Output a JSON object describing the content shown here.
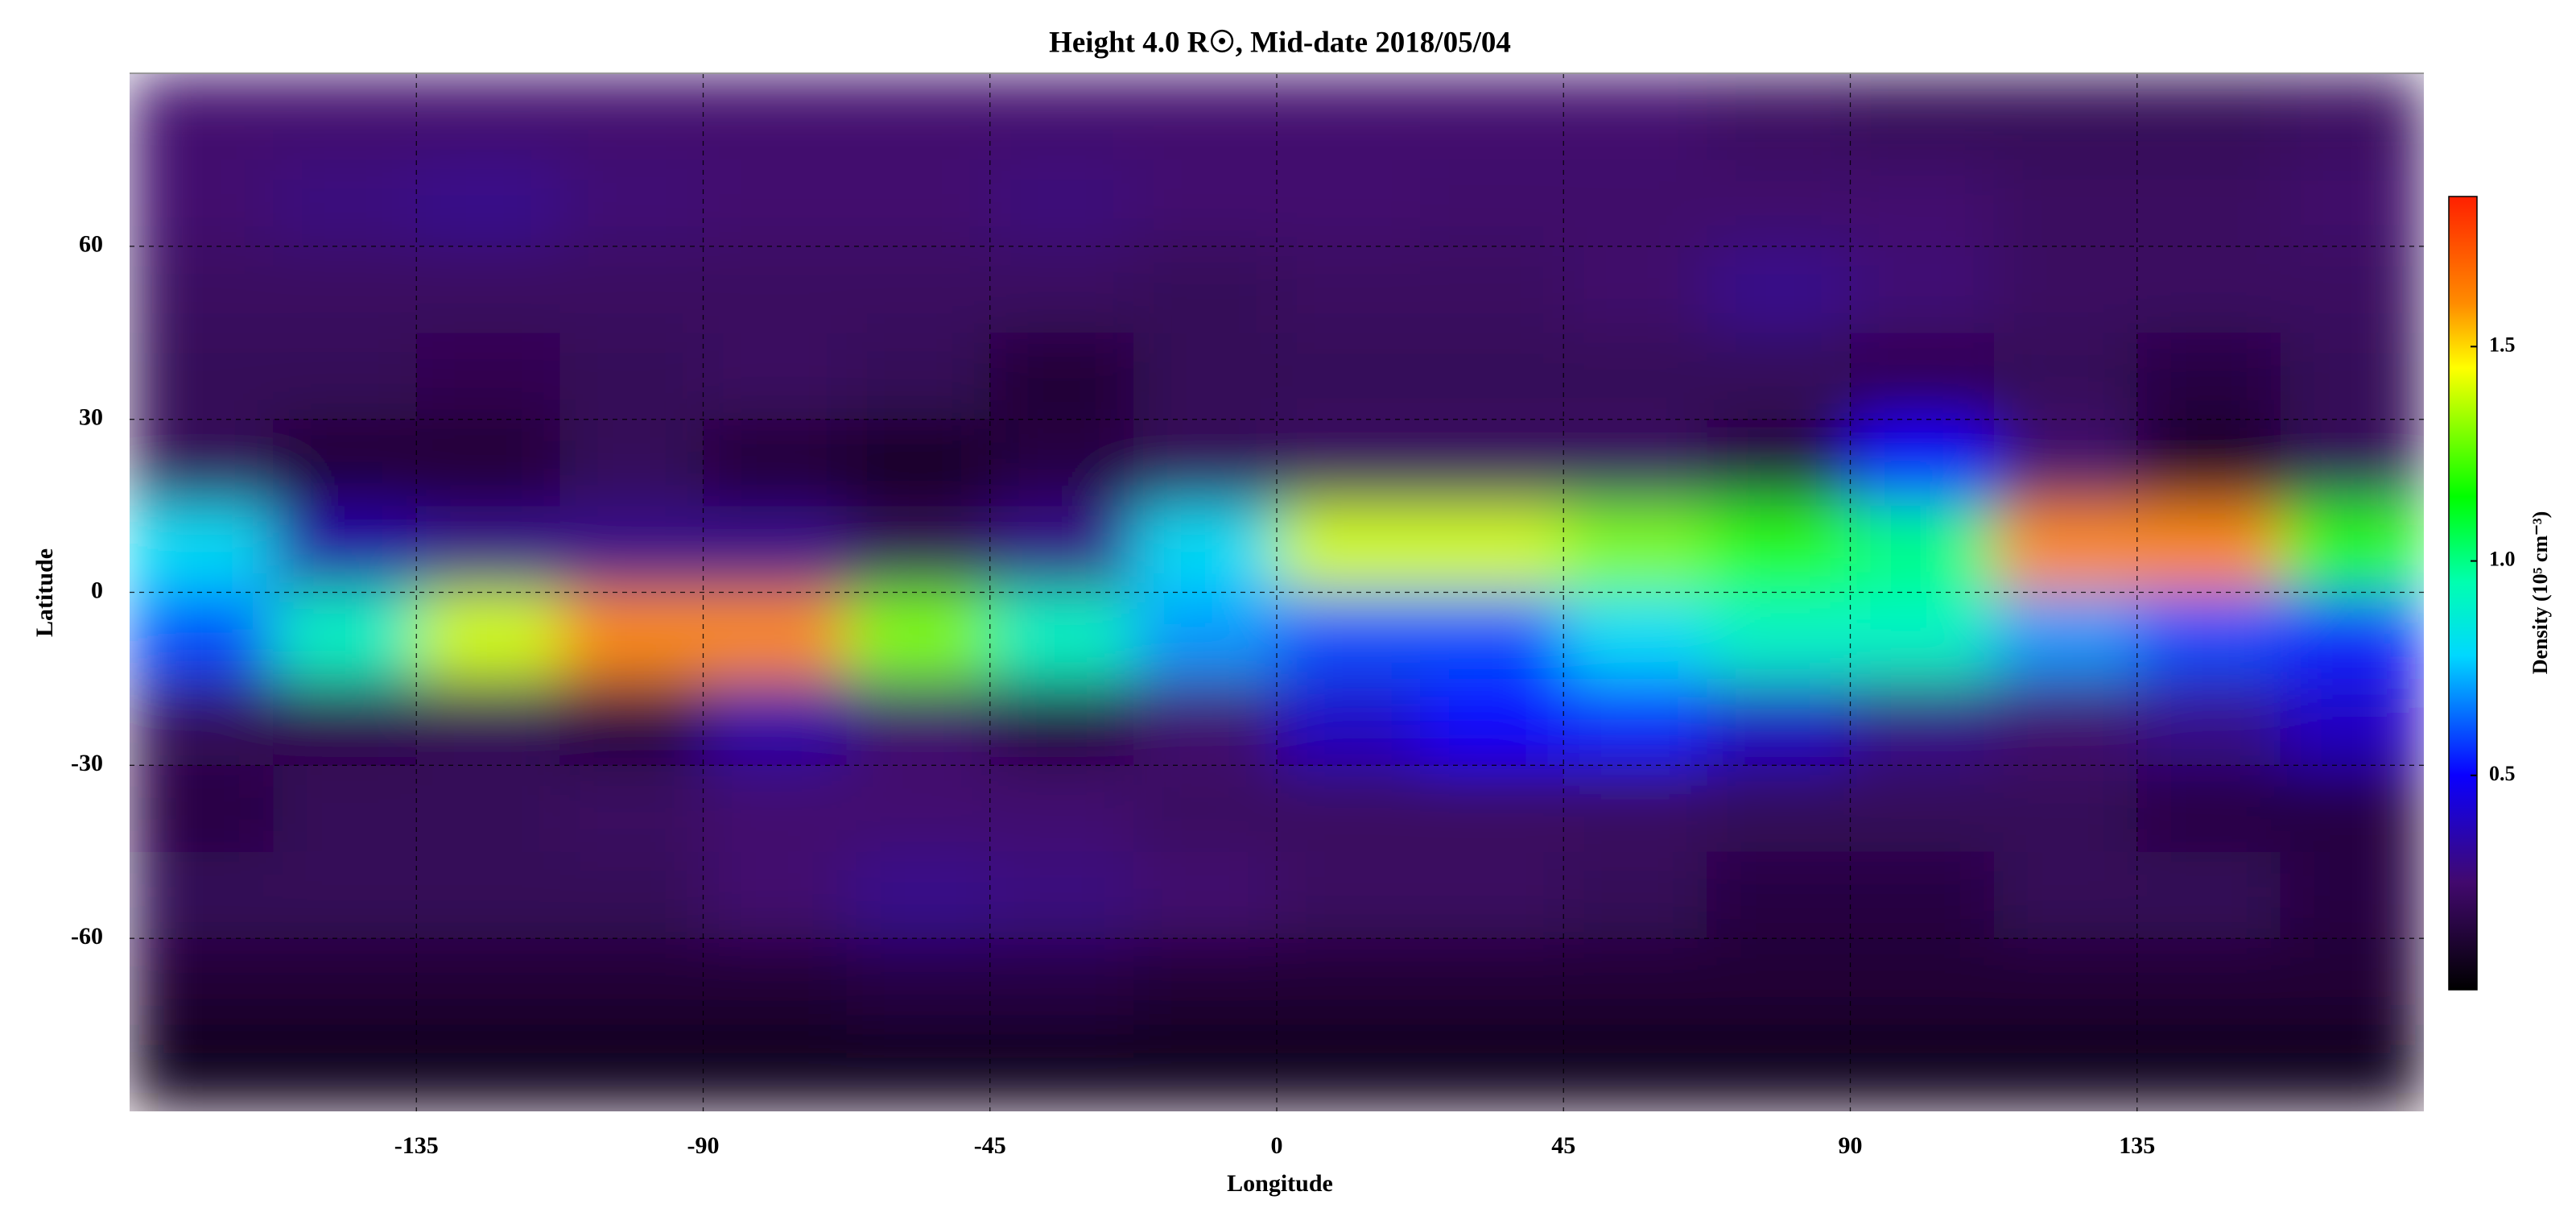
{
  "chart_data": {
    "type": "heatmap",
    "title": "Height 4.0 R☉, Mid-date 2018/05/04",
    "x_label": "Longitude",
    "y_label": "Latitude",
    "colorbar_label": "Density (10⁵ cm⁻³)",
    "x": [
      -168.75,
      -146.25,
      -123.75,
      -101.25,
      -78.75,
      -56.25,
      -33.75,
      -11.25,
      11.25,
      33.75,
      56.25,
      78.75,
      101.25,
      123.75,
      146.25,
      168.75
    ],
    "y": [
      82.5,
      67.5,
      52.5,
      37.5,
      22.5,
      7.5,
      -7.5,
      -22.5,
      -37.5,
      -52.5,
      -67.5,
      -82.5
    ],
    "values": [
      [
        0.25,
        0.25,
        0.25,
        0.25,
        0.25,
        0.25,
        0.25,
        0.25,
        0.25,
        0.25,
        0.25,
        0.22,
        0.2,
        0.2,
        0.2,
        0.22
      ],
      [
        0.25,
        0.28,
        0.3,
        0.26,
        0.25,
        0.25,
        0.27,
        0.25,
        0.25,
        0.24,
        0.24,
        0.24,
        0.25,
        0.22,
        0.22,
        0.24
      ],
      [
        0.22,
        0.22,
        0.22,
        0.22,
        0.22,
        0.22,
        0.22,
        0.2,
        0.22,
        0.22,
        0.24,
        0.3,
        0.26,
        0.22,
        0.22,
        0.22
      ],
      [
        0.2,
        0.2,
        0.18,
        0.2,
        0.22,
        0.2,
        0.12,
        0.2,
        0.2,
        0.2,
        0.2,
        0.2,
        0.18,
        0.2,
        0.15,
        0.2
      ],
      [
        0.2,
        0.12,
        0.12,
        0.2,
        0.12,
        0.08,
        0.15,
        0.2,
        0.22,
        0.22,
        0.22,
        0.15,
        0.5,
        0.25,
        0.1,
        0.2
      ],
      [
        0.8,
        0.35,
        0.3,
        0.3,
        0.3,
        0.2,
        0.3,
        0.8,
        1.4,
        1.4,
        1.3,
        1.2,
        1.0,
        1.6,
        1.6,
        1.2
      ],
      [
        0.6,
        0.9,
        1.4,
        1.6,
        1.6,
        1.3,
        0.9,
        0.7,
        0.6,
        0.6,
        0.8,
        0.9,
        0.9,
        0.7,
        0.6,
        0.55
      ],
      [
        0.2,
        0.18,
        0.2,
        0.15,
        0.35,
        0.25,
        0.15,
        0.25,
        0.4,
        0.5,
        0.55,
        0.4,
        0.3,
        0.25,
        0.3,
        0.4
      ],
      [
        0.15,
        0.2,
        0.2,
        0.22,
        0.25,
        0.25,
        0.25,
        0.22,
        0.22,
        0.22,
        0.22,
        0.2,
        0.2,
        0.2,
        0.15,
        0.15
      ],
      [
        0.2,
        0.2,
        0.2,
        0.2,
        0.25,
        0.3,
        0.28,
        0.25,
        0.22,
        0.22,
        0.2,
        0.15,
        0.15,
        0.2,
        0.2,
        0.15
      ],
      [
        0.12,
        0.12,
        0.12,
        0.12,
        0.12,
        0.15,
        0.15,
        0.12,
        0.12,
        0.12,
        0.12,
        0.12,
        0.12,
        0.12,
        0.12,
        0.12
      ],
      [
        0.06,
        0.06,
        0.06,
        0.06,
        0.06,
        0.06,
        0.06,
        0.06,
        0.06,
        0.06,
        0.06,
        0.06,
        0.06,
        0.06,
        0.06,
        0.06
      ]
    ],
    "xlim": [
      -180,
      180
    ],
    "xticks": [
      -135,
      -90,
      -45,
      0,
      45,
      90,
      135
    ],
    "ylim": [
      -90,
      90
    ],
    "yticks": [
      -60,
      -30,
      0,
      30,
      60
    ],
    "zlim": [
      0,
      1.85
    ],
    "zticks": [
      0.5,
      {
        "value": 1,
        "label": "1.0"
      },
      1.5
    ],
    "grid": true,
    "colormap": [
      [
        0,
        "#000000"
      ],
      [
        0.25,
        "#42096e"
      ],
      [
        0.5,
        "#0a00ff"
      ],
      [
        0.78,
        "#00d8ff"
      ],
      [
        0.95,
        "#00ffb0"
      ],
      [
        1.15,
        "#00ff00"
      ],
      [
        1.45,
        "#ffff00"
      ],
      [
        1.6,
        "#ff8c00"
      ],
      [
        1.85,
        "#ff2000"
      ]
    ]
  }
}
